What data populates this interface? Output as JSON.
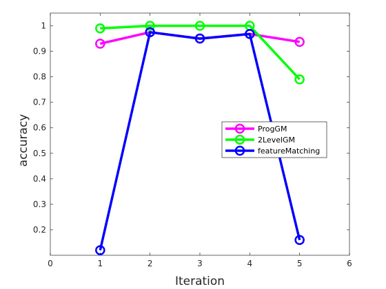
{
  "chart_data": {
    "type": "line",
    "title": "",
    "xlabel": "Iteration",
    "ylabel": "accuracy",
    "xlim": [
      0,
      6
    ],
    "ylim": [
      0.1,
      1.05
    ],
    "xticks": [
      "0",
      "1",
      "2",
      "3",
      "4",
      "5",
      "6"
    ],
    "yticks": [
      "0.2",
      "0.3",
      "0.4",
      "0.5",
      "0.6",
      "0.7",
      "0.8",
      "0.9",
      "1"
    ],
    "grid": false,
    "legend_position": "right-middle",
    "x": [
      1,
      2,
      3,
      4,
      5
    ],
    "series": [
      {
        "name": "ProgGM",
        "color": "#ff00ff",
        "marker": "circle",
        "values": [
          0.93,
          0.975,
          0.95,
          0.968,
          0.937
        ]
      },
      {
        "name": "2LevelGM",
        "color": "#00ff00",
        "marker": "circle",
        "values": [
          0.99,
          1.0,
          1.0,
          1.0,
          0.79
        ]
      },
      {
        "name": "featureMatching",
        "color": "#0000ff",
        "marker": "circle",
        "values": [
          0.12,
          0.975,
          0.95,
          0.968,
          0.16
        ]
      }
    ]
  }
}
